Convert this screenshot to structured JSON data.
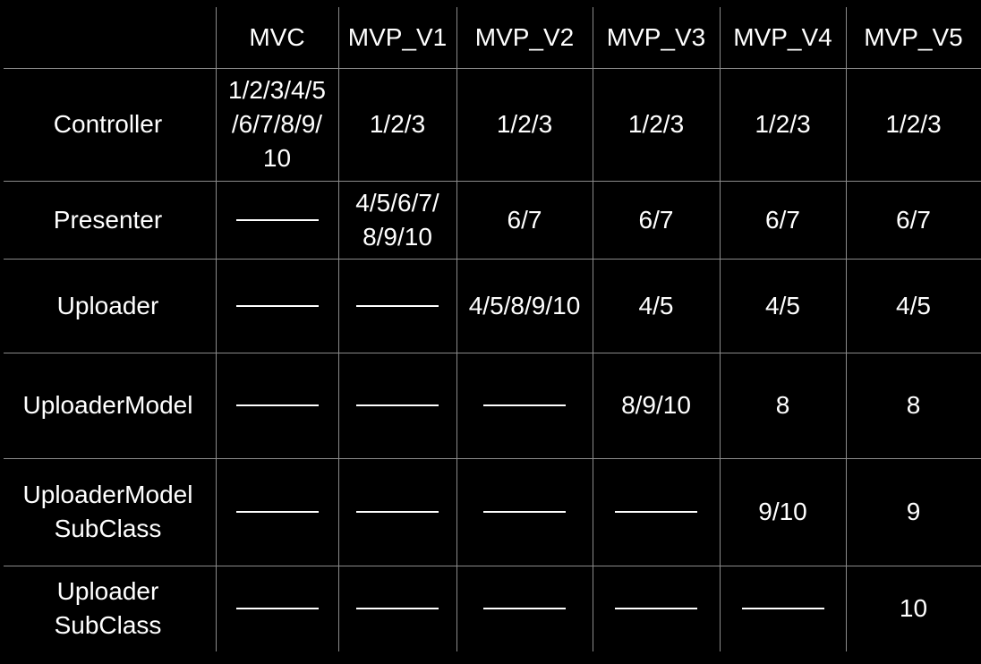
{
  "table": {
    "corner": "",
    "columns": [
      "MVC",
      "MVP_V1",
      "MVP_V2",
      "MVP_V3",
      "MVP_V4",
      "MVP_V5"
    ],
    "rows": [
      {
        "label": "Controller",
        "cells": [
          "1/2/3/4/5\n/6/7/8/9/\n10",
          "1/2/3",
          "1/2/3",
          "1/2/3",
          "1/2/3",
          "1/2/3"
        ]
      },
      {
        "label": "Presenter",
        "cells": [
          "—",
          "4/5/6/7/\n8/9/10",
          "6/7",
          "6/7",
          "6/7",
          "6/7"
        ]
      },
      {
        "label": "Uploader",
        "cells": [
          "—",
          "—",
          "4/5/8/9/10",
          "4/5",
          "4/5",
          "4/5"
        ]
      },
      {
        "label": "UploaderModel",
        "cells": [
          "—",
          "—",
          "—",
          "8/9/10",
          "8",
          "8"
        ]
      },
      {
        "label": "UploaderModel\nSubClass",
        "cells": [
          "—",
          "—",
          "—",
          "—",
          "9/10",
          "9"
        ]
      },
      {
        "label": "Uploader\nSubClass",
        "cells": [
          "—",
          "—",
          "—",
          "—",
          "—",
          "10"
        ]
      }
    ]
  }
}
